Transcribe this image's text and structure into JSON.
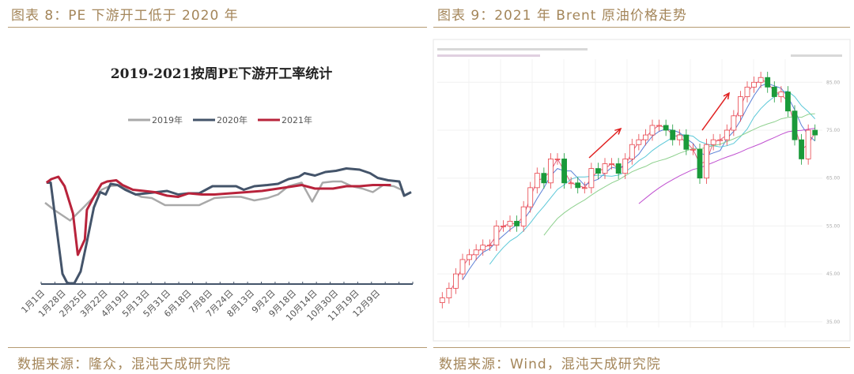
{
  "left": {
    "caption": "图表 8：PE 下游开工低于 2020 年",
    "source": "数据来源：隆众，混沌天成研究院"
  },
  "right": {
    "caption": "图表 9：2021 年 Brent 原油价格走势",
    "source": "数据来源：Wind，混沌天成研究院"
  },
  "chart_data": [
    {
      "type": "line",
      "title": "2019-2021按周PE下游开工率统计",
      "xlabel": "",
      "ylabel": "",
      "x_unit": "week of year",
      "xlim": [
        0,
        52.5
      ],
      "ylim": [
        0,
        100
      ],
      "y_tick_labels_shown": false,
      "grid": false,
      "legend_position": "top-center",
      "tick_labels": [
        "1月1日",
        "1月28日",
        "2月25日",
        "3月22日",
        "4月19日",
        "5月13日",
        "5月31日",
        "6月18日",
        "7月8日",
        "7月24日",
        "8月13日",
        "9月2日",
        "9月18日",
        "10月14日",
        "10月30日",
        "11月19日",
        "12月9日"
      ],
      "series": [
        {
          "name": "2019年",
          "color": "#a9a9a9",
          "points": [
            [
              0,
              68
            ],
            [
              1.3,
              62
            ],
            [
              3.6,
              53
            ],
            [
              5.5,
              64
            ],
            [
              7,
              73
            ],
            [
              8.1,
              79
            ],
            [
              9.2,
              82
            ],
            [
              10.8,
              83
            ],
            [
              12.3,
              77
            ],
            [
              13.8,
              73
            ],
            [
              15.3,
              72
            ],
            [
              17.2,
              66
            ],
            [
              19.1,
              66
            ],
            [
              20.9,
              66
            ],
            [
              22.1,
              66
            ],
            [
              24.3,
              72
            ],
            [
              26.6,
              73
            ],
            [
              28.1,
              73
            ],
            [
              30,
              70
            ],
            [
              31.9,
              72
            ],
            [
              33.4,
              75
            ],
            [
              34.9,
              82
            ],
            [
              36.8,
              85
            ],
            [
              38.3,
              69
            ],
            [
              39.8,
              85
            ],
            [
              41.3,
              86
            ],
            [
              42.5,
              86
            ],
            [
              44,
              82
            ],
            [
              45.5,
              80
            ],
            [
              47,
              77
            ],
            [
              48.5,
              83
            ],
            [
              50,
              82
            ],
            [
              51.1,
              79
            ],
            [
              51.5,
              73
            ]
          ]
        },
        {
          "name": "2020年",
          "color": "#44546a",
          "points": [
            [
              0.2,
              85
            ],
            [
              0.8,
              85
            ],
            [
              2.5,
              8
            ],
            [
              3.2,
              0
            ],
            [
              4.2,
              0
            ],
            [
              5.1,
              10
            ],
            [
              6,
              35
            ],
            [
              7,
              64
            ],
            [
              7.9,
              77
            ],
            [
              8.7,
              75
            ],
            [
              9.4,
              84
            ],
            [
              10.4,
              83
            ],
            [
              11.5,
              79
            ],
            [
              13,
              75
            ],
            [
              14.5,
              76
            ],
            [
              16,
              77
            ],
            [
              17.5,
              78
            ],
            [
              19.1,
              75
            ],
            [
              20.6,
              76
            ],
            [
              22.1,
              76
            ],
            [
              24,
              82
            ],
            [
              25.8,
              82
            ],
            [
              27.4,
              82
            ],
            [
              28.5,
              79
            ],
            [
              30,
              82
            ],
            [
              31.9,
              83
            ],
            [
              33.4,
              84
            ],
            [
              34.9,
              88
            ],
            [
              36.4,
              90
            ],
            [
              37.2,
              93
            ],
            [
              38.7,
              91
            ],
            [
              40.2,
              94
            ],
            [
              41.7,
              95
            ],
            [
              43.2,
              97
            ],
            [
              45.1,
              96
            ],
            [
              46.6,
              93
            ],
            [
              47.7,
              89
            ],
            [
              49.2,
              87
            ],
            [
              50.8,
              86
            ],
            [
              51.5,
              74
            ],
            [
              52.5,
              77
            ]
          ]
        },
        {
          "name": "2021年",
          "color": "#b8233b",
          "points": [
            [
              0.2,
              85
            ],
            [
              0.9,
              88
            ],
            [
              1.9,
              90
            ],
            [
              2.8,
              82
            ],
            [
              4,
              59
            ],
            [
              4.7,
              24
            ],
            [
              5.7,
              37
            ],
            [
              6,
              62
            ],
            [
              7,
              73
            ],
            [
              8.1,
              84
            ],
            [
              8.9,
              86
            ],
            [
              10.2,
              87
            ],
            [
              11.1,
              83
            ],
            [
              12.6,
              79
            ],
            [
              14.2,
              78
            ],
            [
              15.7,
              77
            ],
            [
              17.5,
              74
            ],
            [
              19.1,
              73
            ],
            [
              20.6,
              76
            ],
            [
              22.5,
              75
            ],
            [
              24.3,
              75
            ],
            [
              26.6,
              76
            ],
            [
              28.9,
              77
            ],
            [
              31.1,
              78
            ],
            [
              33.4,
              80
            ],
            [
              35.7,
              82
            ],
            [
              36.8,
              83
            ],
            [
              38.7,
              80
            ],
            [
              41.3,
              80
            ],
            [
              43.2,
              82
            ],
            [
              45.1,
              82
            ],
            [
              47,
              83
            ],
            [
              49.6,
              83
            ]
          ]
        }
      ]
    },
    {
      "type": "candlestick",
      "title": "",
      "xlabel": "",
      "ylabel": "",
      "ylim": [
        33,
        89
      ],
      "y_tick_labels": [
        "85.00",
        "75.00",
        "65.00",
        "55.00",
        "45.00",
        "35.00"
      ],
      "grid": true,
      "period": "weekly approximation, Nov 2020 – Dec 2021",
      "up_color": "#e8434a",
      "down_color": "#1a9a3a",
      "ma_colors": [
        "#e06080",
        "#5a7fd6",
        "#5bc8d8",
        "#8fd18f",
        "#c050d0"
      ],
      "annotation_color": "#e02020",
      "annotations": [
        "arrow-up-trend",
        "arrow-up-trend"
      ],
      "closes": [
        40,
        42,
        45,
        48,
        49,
        50,
        51,
        51,
        55,
        55,
        56,
        55,
        59,
        63,
        66,
        64,
        69,
        69,
        64,
        64,
        63,
        63,
        67,
        66,
        68,
        68,
        66,
        69,
        72,
        73,
        74,
        76,
        76,
        75,
        73,
        74,
        71,
        71,
        65,
        72,
        73,
        73,
        75,
        78,
        82,
        84,
        85,
        86,
        84,
        82,
        83,
        79,
        73,
        69,
        75,
        74
      ]
    }
  ]
}
